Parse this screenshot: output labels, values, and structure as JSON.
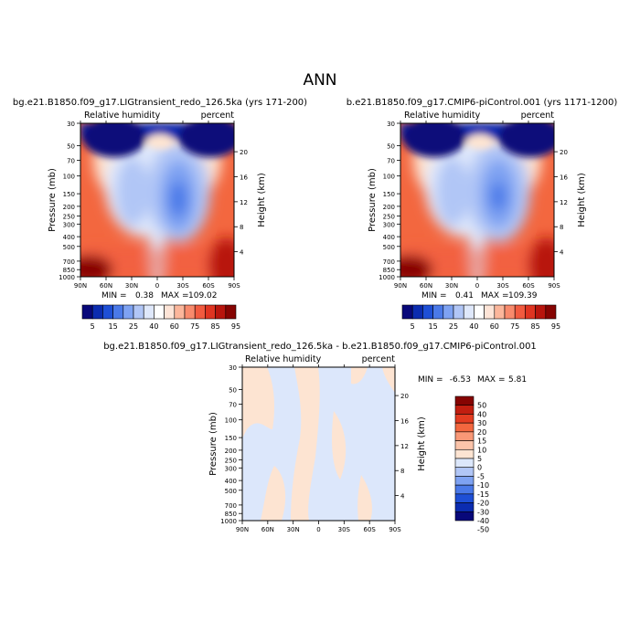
{
  "page_title": "ANN",
  "colors": {
    "seq": [
      "#08087a",
      "#0b2cb0",
      "#1e4fd6",
      "#4a79e8",
      "#7ea2f2",
      "#b1c6f6",
      "#dfe8fb",
      "#ffffff",
      "#fde4d7",
      "#fbb69b",
      "#f88a6c",
      "#f15a3f",
      "#df3421",
      "#b8150d",
      "#860402"
    ],
    "diff": [
      "#08087a",
      "#0b2cb0",
      "#1e4fd6",
      "#4a79e8",
      "#7ea2f2",
      "#b1c6f6",
      "#dce7fb",
      "#fde4d2",
      "#fbc4aa",
      "#f99877",
      "#f3673f",
      "#e43c21",
      "#c21e10",
      "#860402"
    ]
  },
  "chart_data": [
    {
      "type": "contour",
      "title": "bg.e21.B1850.f09_g17.LIGtransient_redo_126.5ka (yrs 171-200)",
      "variable": "Relative humidity",
      "units": "percent",
      "xlabel": "",
      "ylabel": "Pressure (mb)",
      "y2label": "Height (km)",
      "x_ticks": [
        "90N",
        "60N",
        "30N",
        "0",
        "30S",
        "60S",
        "90S"
      ],
      "y_ticks": [
        "30",
        "50",
        "70",
        "100",
        "150",
        "200",
        "250",
        "300",
        "400",
        "500",
        "700",
        "850",
        "1000"
      ],
      "y2_ticks": [
        "20",
        "16",
        "12",
        "8",
        "4"
      ],
      "min_label": "MIN =",
      "min": "0.38",
      "max_label": "MAX =",
      "max": "109.02",
      "colorbar_labels": [
        "5",
        "15",
        "25",
        "40",
        "60",
        "75",
        "85",
        "95"
      ]
    },
    {
      "type": "contour",
      "title": "b.e21.B1850.f09_g17.CMIP6-piControl.001 (yrs 1171-1200)",
      "variable": "Relative humidity",
      "units": "percent",
      "xlabel": "",
      "ylabel": "Pressure (mb)",
      "y2label": "Height (km)",
      "x_ticks": [
        "90N",
        "60N",
        "30N",
        "0",
        "30S",
        "60S",
        "90S"
      ],
      "y_ticks": [
        "30",
        "50",
        "70",
        "100",
        "150",
        "200",
        "250",
        "300",
        "400",
        "500",
        "700",
        "850",
        "1000"
      ],
      "y2_ticks": [
        "20",
        "16",
        "12",
        "8",
        "4"
      ],
      "min_label": "MIN =",
      "min": "0.41",
      "max_label": "MAX =",
      "max": "109.39",
      "colorbar_labels": [
        "5",
        "15",
        "25",
        "40",
        "60",
        "75",
        "85",
        "95"
      ]
    },
    {
      "type": "contour",
      "title": "bg.e21.B1850.f09_g17.LIGtransient_redo_126.5ka - b.e21.B1850.f09_g17.CMIP6-piControl.001",
      "variable": "Relative humidity",
      "units": "percent",
      "xlabel": "",
      "ylabel": "Pressure (mb)",
      "y2label": "Height (km)",
      "x_ticks": [
        "90N",
        "60N",
        "30N",
        "0",
        "30S",
        "60S",
        "90S"
      ],
      "y_ticks": [
        "30",
        "50",
        "70",
        "100",
        "150",
        "200",
        "250",
        "300",
        "400",
        "500",
        "700",
        "850",
        "1000"
      ],
      "y2_ticks": [
        "20",
        "16",
        "12",
        "8",
        "4"
      ],
      "min_label": "MIN =",
      "min": "-6.53",
      "max_label": "MAX =",
      "max": "5.81",
      "colorbar_labels": [
        "50",
        "40",
        "30",
        "20",
        "15",
        "10",
        "5",
        "0",
        "-5",
        "-10",
        "-15",
        "-20",
        "-30",
        "-40",
        "-50"
      ]
    }
  ]
}
